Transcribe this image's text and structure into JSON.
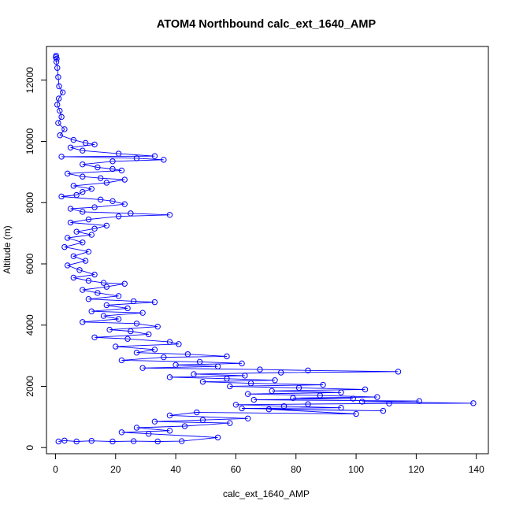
{
  "chart_data": {
    "type": "scatter",
    "title": "ATOM4 Northbound calc_ext_1640_AMP",
    "xlabel": "calc_ext_1640_AMP",
    "ylabel": "Altitude (m)",
    "xlim": [
      -3,
      144
    ],
    "ylim": [
      -200,
      13100
    ],
    "x_ticks": [
      0,
      20,
      40,
      60,
      80,
      100,
      120,
      140
    ],
    "y_ticks": [
      0,
      2000,
      4000,
      6000,
      8000,
      10000,
      12000
    ],
    "grid": false,
    "legend": "none",
    "style": "points connected by lines",
    "series": [
      {
        "color": "#0000ff",
        "points": [
          [
            0.2,
            12800
          ],
          [
            0.1,
            12750
          ],
          [
            0.4,
            12700
          ],
          [
            0.3,
            12600
          ],
          [
            0.6,
            12400
          ],
          [
            0.9,
            12100
          ],
          [
            1.2,
            11800
          ],
          [
            2.4,
            11600
          ],
          [
            1.1,
            11400
          ],
          [
            0.6,
            11200
          ],
          [
            1.4,
            11000
          ],
          [
            2.0,
            10800
          ],
          [
            0.9,
            10600
          ],
          [
            3.0,
            10400
          ],
          [
            1.5,
            10200
          ],
          [
            6.0,
            10050
          ],
          [
            10.0,
            9950
          ],
          [
            13.0,
            9900
          ],
          [
            5.0,
            9800
          ],
          [
            9.0,
            9700
          ],
          [
            21.0,
            9600
          ],
          [
            33.0,
            9520
          ],
          [
            2.0,
            9500
          ],
          [
            27.0,
            9450
          ],
          [
            36.0,
            9400
          ],
          [
            19.0,
            9350
          ],
          [
            9.0,
            9250
          ],
          [
            14.0,
            9150
          ],
          [
            19.0,
            9100
          ],
          [
            22.0,
            9050
          ],
          [
            4.0,
            8950
          ],
          [
            9.0,
            8850
          ],
          [
            15.0,
            8800
          ],
          [
            23.0,
            8750
          ],
          [
            17.0,
            8650
          ],
          [
            6.0,
            8550
          ],
          [
            12.0,
            8450
          ],
          [
            9.0,
            8350
          ],
          [
            7.0,
            8250
          ],
          [
            2.0,
            8200
          ],
          [
            15.0,
            8100
          ],
          [
            19.0,
            8050
          ],
          [
            23.0,
            7950
          ],
          [
            13.0,
            7850
          ],
          [
            5.0,
            7800
          ],
          [
            9.0,
            7700
          ],
          [
            25.0,
            7650
          ],
          [
            38.0,
            7600
          ],
          [
            21.0,
            7550
          ],
          [
            11.0,
            7450
          ],
          [
            5.0,
            7350
          ],
          [
            17.0,
            7250
          ],
          [
            13.0,
            7150
          ],
          [
            7.0,
            7050
          ],
          [
            12.0,
            6950
          ],
          [
            4.0,
            6850
          ],
          [
            9.0,
            6700
          ],
          [
            3.0,
            6550
          ],
          [
            11.0,
            6400
          ],
          [
            6.0,
            6250
          ],
          [
            10.0,
            6100
          ],
          [
            4.0,
            5950
          ],
          [
            8.0,
            5800
          ],
          [
            13.0,
            5650
          ],
          [
            6.0,
            5550
          ],
          [
            11.0,
            5450
          ],
          [
            16.0,
            5380
          ],
          [
            23.0,
            5350
          ],
          [
            17.0,
            5250
          ],
          [
            9.0,
            5150
          ],
          [
            14.0,
            5050
          ],
          [
            21.0,
            4950
          ],
          [
            11.0,
            4850
          ],
          [
            26.0,
            4780
          ],
          [
            33.0,
            4750
          ],
          [
            17.0,
            4650
          ],
          [
            24.0,
            4550
          ],
          [
            12.0,
            4450
          ],
          [
            29.0,
            4400
          ],
          [
            16.0,
            4300
          ],
          [
            21.0,
            4200
          ],
          [
            9.0,
            4100
          ],
          [
            27.0,
            4050
          ],
          [
            34.0,
            3950
          ],
          [
            18.0,
            3850
          ],
          [
            25.0,
            3800
          ],
          [
            31.0,
            3700
          ],
          [
            13.0,
            3600
          ],
          [
            24.0,
            3550
          ],
          [
            38.0,
            3450
          ],
          [
            41.0,
            3380
          ],
          [
            20.0,
            3300
          ],
          [
            33.0,
            3200
          ],
          [
            27.0,
            3100
          ],
          [
            44.0,
            3050
          ],
          [
            57.0,
            2980
          ],
          [
            36.0,
            2950
          ],
          [
            22.0,
            2850
          ],
          [
            48.0,
            2800
          ],
          [
            62.0,
            2750
          ],
          [
            40.0,
            2700
          ],
          [
            54.0,
            2650
          ],
          [
            29.0,
            2600
          ],
          [
            68.0,
            2550
          ],
          [
            84.0,
            2520
          ],
          [
            114.0,
            2480
          ],
          [
            75.0,
            2450
          ],
          [
            46.0,
            2400
          ],
          [
            63.0,
            2350
          ],
          [
            38.0,
            2300
          ],
          [
            57.0,
            2250
          ],
          [
            73.0,
            2200
          ],
          [
            49.0,
            2150
          ],
          [
            65.0,
            2100
          ],
          [
            89.0,
            2050
          ],
          [
            58.0,
            2000
          ],
          [
            81.0,
            1950
          ],
          [
            103.0,
            1900
          ],
          [
            72.0,
            1850
          ],
          [
            95.0,
            1800
          ],
          [
            64.0,
            1750
          ],
          [
            88.0,
            1700
          ],
          [
            107.0,
            1650
          ],
          [
            79.0,
            1620
          ],
          [
            99.0,
            1600
          ],
          [
            66.0,
            1560
          ],
          [
            121.0,
            1520
          ],
          [
            102.0,
            1500
          ],
          [
            139.0,
            1450
          ],
          [
            111.0,
            1440
          ],
          [
            84.0,
            1420
          ],
          [
            60.0,
            1400
          ],
          [
            76.0,
            1350
          ],
          [
            95.0,
            1300
          ],
          [
            62.0,
            1280
          ],
          [
            109.0,
            1200
          ],
          [
            71.0,
            1250
          ],
          [
            100.0,
            1100
          ],
          [
            47.0,
            1150
          ],
          [
            38.0,
            1050
          ],
          [
            64.0,
            950
          ],
          [
            49.0,
            900
          ],
          [
            33.0,
            850
          ],
          [
            58.0,
            800
          ],
          [
            43.0,
            700
          ],
          [
            27.0,
            650
          ],
          [
            38.0,
            550
          ],
          [
            22.0,
            500
          ],
          [
            31.0,
            450
          ],
          [
            54.0,
            330
          ],
          [
            42.0,
            210
          ],
          [
            34.0,
            200
          ],
          [
            26.0,
            210
          ],
          [
            19.0,
            200
          ],
          [
            12.0,
            220
          ],
          [
            7.0,
            200
          ],
          [
            3.0,
            230
          ],
          [
            1.0,
            200
          ]
        ]
      }
    ]
  }
}
